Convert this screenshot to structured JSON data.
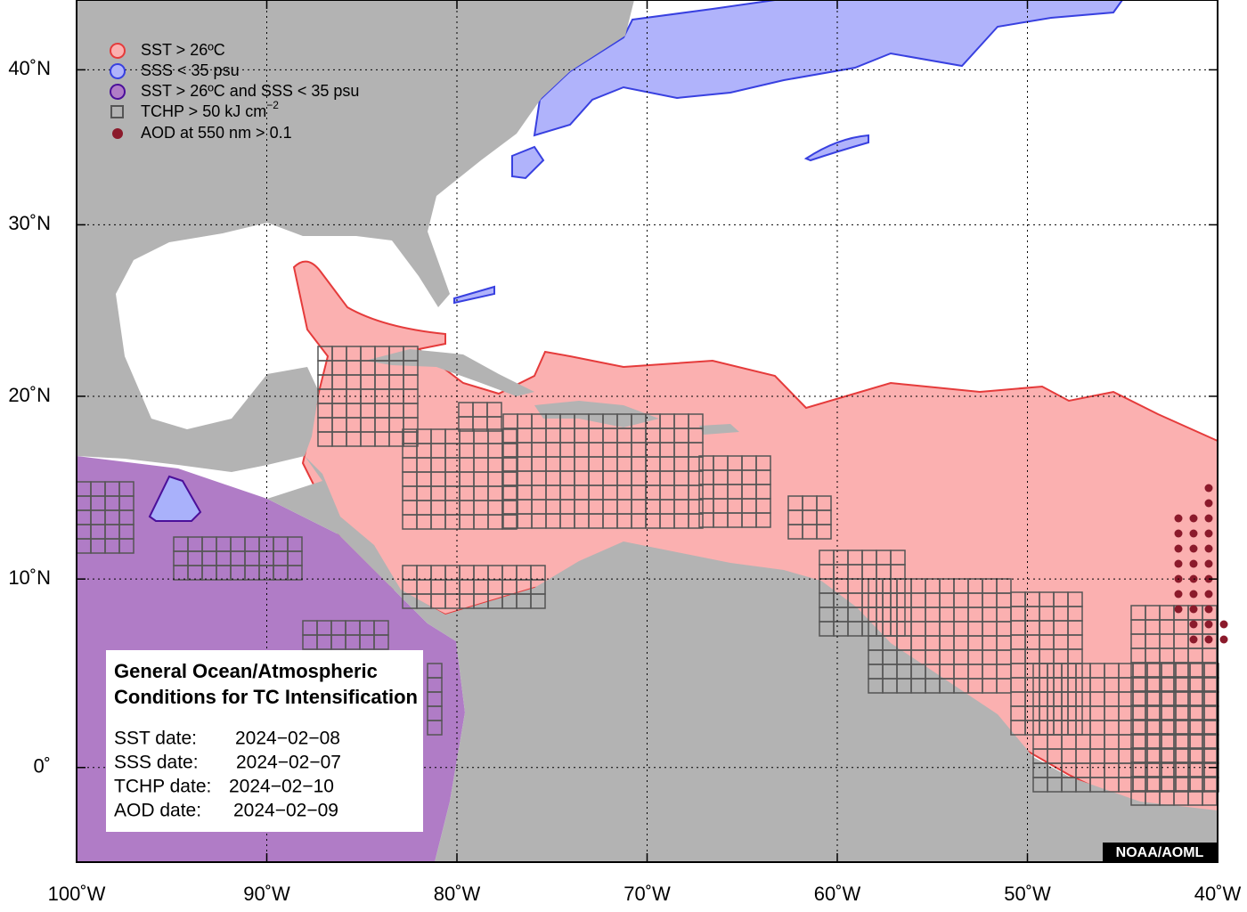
{
  "map": {
    "xlim": [
      -100,
      -40
    ],
    "ylim": [
      -5,
      45
    ],
    "xticks": [
      {
        "value": -100,
        "label": "100˚W"
      },
      {
        "value": -90,
        "label": "90˚W"
      },
      {
        "value": -80,
        "label": "80˚W"
      },
      {
        "value": -70,
        "label": "70˚W"
      },
      {
        "value": -60,
        "label": "60˚W"
      },
      {
        "value": -50,
        "label": "50˚W"
      },
      {
        "value": -40,
        "label": "40˚W"
      }
    ],
    "yticks": [
      {
        "value": 0,
        "label": "0˚"
      },
      {
        "value": 10,
        "label": "10˚N"
      },
      {
        "value": 20,
        "label": "20˚N"
      },
      {
        "value": 30,
        "label": "30˚N"
      },
      {
        "value": 40,
        "label": "40˚N"
      }
    ],
    "grid": true
  },
  "legend": [
    {
      "text": "SST > 26ºC"
    },
    {
      "text": "SSS < 35 psu"
    },
    {
      "text": "SST > 26ºC and SSS < 35 psu"
    },
    {
      "text": "TCHP > 50 kJ cm",
      "sup": "−2"
    },
    {
      "text": "AOD at 550 nm > 0.1"
    }
  ],
  "info_box": {
    "title": [
      "General Ocean/Atmospheric",
      "Conditions for TC Intensification"
    ],
    "rows": [
      {
        "label": "SST date:",
        "value": "2024−02−08"
      },
      {
        "label": "SSS date:",
        "value": "2024−02−07"
      },
      {
        "label": "TCHP date:",
        "value": "2024−02−10"
      },
      {
        "label": "AOD date:",
        "value": "2024−02−09"
      }
    ]
  },
  "credit": "NOAA/AOML"
}
